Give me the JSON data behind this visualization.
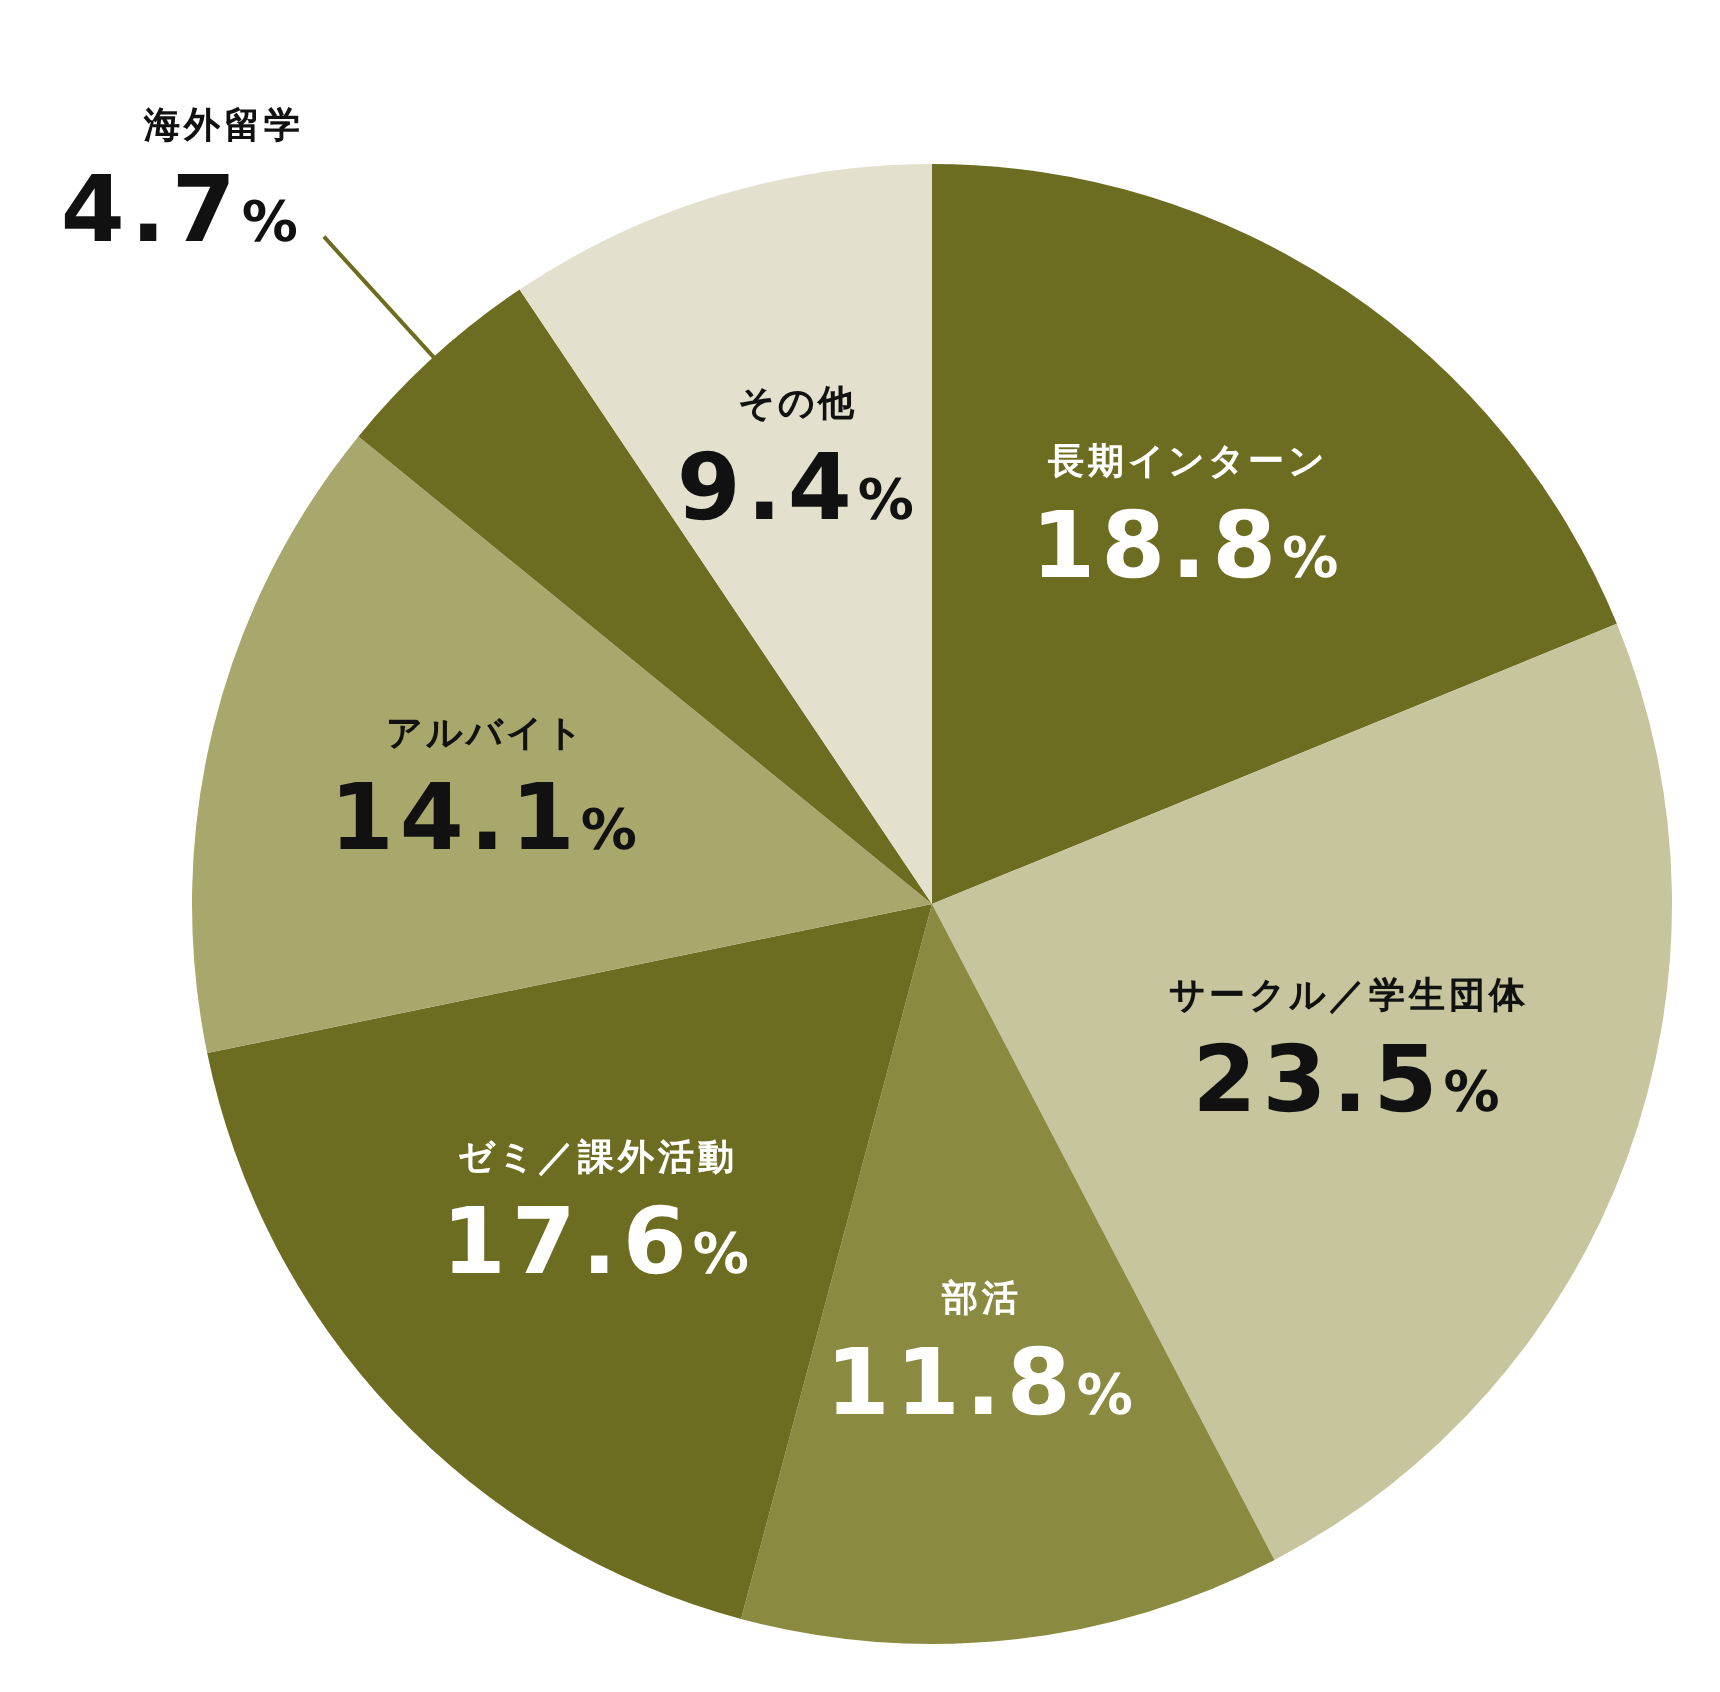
{
  "chart_data": {
    "type": "pie",
    "categories": [
      "長期インターン",
      "サークル／学生団体",
      "部活",
      "ゼミ／課外活動",
      "アルバイト",
      "海外留学",
      "その他"
    ],
    "values": [
      18.8,
      23.5,
      11.8,
      17.6,
      14.1,
      4.7,
      9.4
    ],
    "value_labels": [
      "18.8%",
      "23.5%",
      "11.8%",
      "17.6%",
      "14.1%",
      "4.7%",
      "9.4%"
    ],
    "colors": [
      "#6d6d21",
      "#c6c59d",
      "#8a8a41",
      "#6d6d21",
      "#a8a86c",
      "#6d6d21",
      "#e3e1cd"
    ],
    "legend": false
  }
}
